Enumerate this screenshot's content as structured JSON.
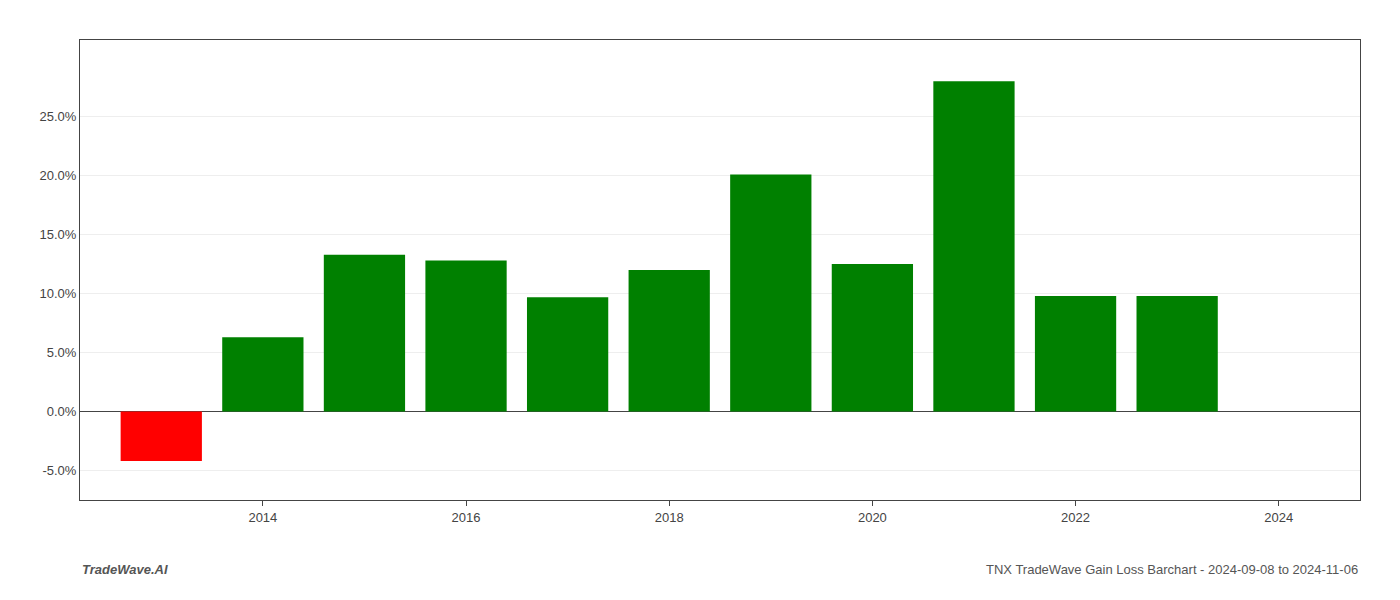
{
  "chart_data": {
    "type": "bar",
    "x": [
      2013,
      2014,
      2015,
      2016,
      2017,
      2018,
      2019,
      2020,
      2021,
      2022,
      2023
    ],
    "values": [
      -0.042,
      0.063,
      0.133,
      0.128,
      0.097,
      0.12,
      0.201,
      0.125,
      0.28,
      0.098,
      0.098
    ],
    "colors": [
      "#ff0000",
      "#008000",
      "#008000",
      "#008000",
      "#008000",
      "#008000",
      "#008000",
      "#008000",
      "#008000",
      "#008000",
      "#008000"
    ],
    "xlim": [
      2012.2,
      2024.8
    ],
    "xticks": [
      2014,
      2016,
      2018,
      2020,
      2022,
      2024
    ],
    "ylim": [
      -0.075,
      0.315
    ],
    "yticks": [
      {
        "value": -0.05,
        "label": "-5.0%"
      },
      {
        "value": 0.0,
        "label": "0.0%"
      },
      {
        "value": 0.05,
        "label": "5.0%"
      },
      {
        "value": 0.1,
        "label": "10.0%"
      },
      {
        "value": 0.15,
        "label": "15.0%"
      },
      {
        "value": 0.2,
        "label": "20.0%"
      },
      {
        "value": 0.25,
        "label": "25.0%"
      }
    ],
    "grid": true,
    "annotations": [
      "TradeWave.AI",
      "TNX TradeWave Gain Loss Barchart - 2024-09-08 to 2024-11-06"
    ]
  }
}
